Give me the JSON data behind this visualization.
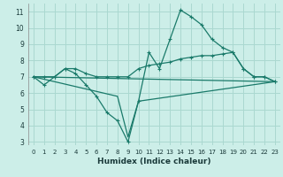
{
  "xlabel": "Humidex (Indice chaleur)",
  "xlim": [
    -0.5,
    23.5
  ],
  "ylim": [
    2.8,
    11.5
  ],
  "xticks": [
    0,
    1,
    2,
    3,
    4,
    5,
    6,
    7,
    8,
    9,
    10,
    11,
    12,
    13,
    14,
    15,
    16,
    17,
    18,
    19,
    20,
    21,
    22,
    23
  ],
  "yticks": [
    3,
    4,
    5,
    6,
    7,
    8,
    9,
    10,
    11
  ],
  "background_color": "#cceee8",
  "grid_color": "#aad8d0",
  "line_color": "#1a7a6a",
  "lines": [
    {
      "x": [
        0,
        1,
        2,
        3,
        4,
        5,
        6,
        7,
        8,
        9,
        10,
        11,
        12,
        13,
        14,
        15,
        16,
        17,
        18,
        19,
        20,
        21,
        22,
        23
      ],
      "y": [
        7.0,
        6.5,
        7.0,
        7.5,
        7.2,
        6.5,
        5.8,
        4.8,
        4.3,
        3.0,
        5.5,
        8.5,
        7.5,
        9.3,
        11.1,
        10.7,
        10.2,
        9.3,
        8.8,
        8.5,
        7.5,
        7.0,
        7.0,
        6.7
      ],
      "marker": true
    },
    {
      "x": [
        0,
        1,
        2,
        3,
        4,
        5,
        6,
        7,
        8,
        9,
        10,
        11,
        12,
        13,
        14,
        15,
        16,
        17,
        18,
        19,
        20,
        21,
        22,
        23
      ],
      "y": [
        7.0,
        7.0,
        7.0,
        7.5,
        7.5,
        7.2,
        7.0,
        7.0,
        7.0,
        7.0,
        7.5,
        7.7,
        7.8,
        7.9,
        8.1,
        8.2,
        8.3,
        8.3,
        8.4,
        8.5,
        7.5,
        7.0,
        7.0,
        6.7
      ],
      "marker": true
    },
    {
      "x": [
        0,
        23
      ],
      "y": [
        7.0,
        6.7
      ],
      "marker": false
    },
    {
      "x": [
        0,
        8,
        9,
        10,
        23
      ],
      "y": [
        7.0,
        5.8,
        3.3,
        5.5,
        6.7
      ],
      "marker": false
    }
  ],
  "xlabel_fontsize": 6.5,
  "tick_fontsize": 5.5
}
